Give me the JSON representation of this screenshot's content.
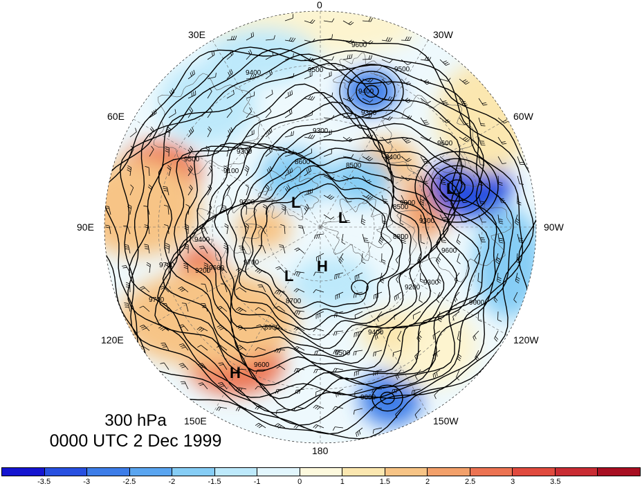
{
  "title": {
    "level": "300 hPa",
    "time": "0000 UTC 2 Dec 1999"
  },
  "longitude_labels": {
    "lon_0": "0",
    "lon_30w": "30W",
    "lon_60w": "60W",
    "lon_90w": "90W",
    "lon_120w": "120W",
    "lon_150w": "150W",
    "lon_180": "180",
    "lon_150e": "150E",
    "lon_120e": "120E",
    "lon_90e": "90E",
    "lon_60e": "60E",
    "lon_30e": "30E"
  },
  "contour_labels": [
    "9600",
    "9500",
    "9400",
    "9300",
    "9300",
    "9400",
    "9500",
    "9600",
    "9400",
    "9300",
    "9200",
    "9100",
    "8600",
    "8500",
    "8800",
    "9000",
    "9300",
    "9600",
    "9300",
    "9200",
    "9400",
    "9500",
    "9600",
    "9700",
    "9700",
    "9500",
    "9200",
    "9400",
    "9600",
    "9700",
    "8900",
    "8700",
    "8500",
    "9000",
    "9600"
  ],
  "pressure_centers": [
    "L",
    "L",
    "L",
    "L",
    "H",
    "H"
  ],
  "colorbar": {
    "colors": [
      "#1515d0",
      "#2850e0",
      "#3d7de8",
      "#5aa5f0",
      "#86cdf5",
      "#bde9fb",
      "#e2f6fd",
      "#fdf9dd",
      "#fbe7b0",
      "#f7c486",
      "#f2a06a",
      "#ec7352",
      "#e04a3e",
      "#c92c33",
      "#a80f22"
    ],
    "tick_labels": [
      "-3.5",
      "-3",
      "-2.5",
      "-2",
      "-1.5",
      "-1",
      "0",
      "1",
      "1.5",
      "2",
      "2.5",
      "3",
      "3.5"
    ]
  }
}
